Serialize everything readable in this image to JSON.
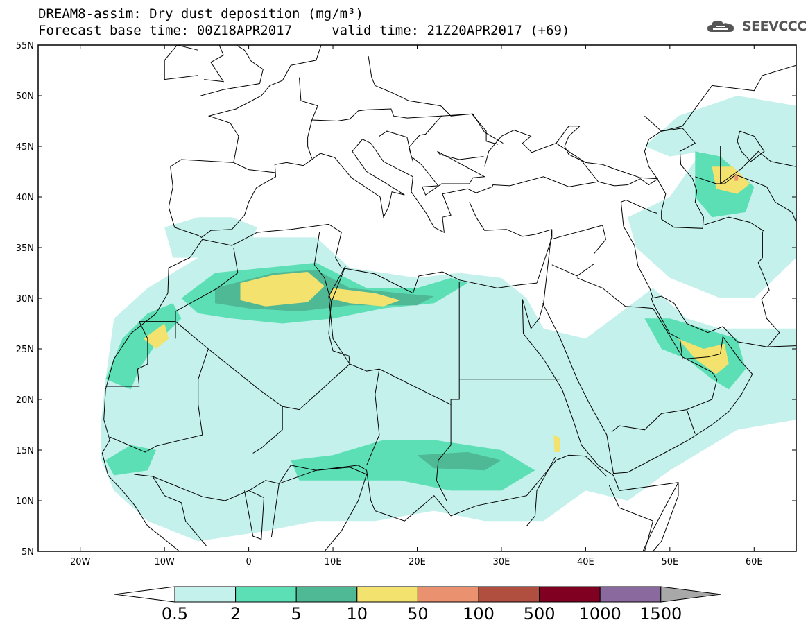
{
  "title": {
    "line1": "DREAM8-assim: Dry dust deposition (mg/m³)",
    "line2": "Forecast base time: 00Z18APR2017     valid time: 21Z20APR2017 (+69)"
  },
  "logo": {
    "text": "SEEVCCC",
    "icon": "cloud-icon"
  },
  "map": {
    "lon_range": [
      -25,
      65
    ],
    "lat_range": [
      5,
      55
    ],
    "lat_labels": [
      {
        "lat": 55,
        "label": "55N"
      },
      {
        "lat": 50,
        "label": "50N"
      },
      {
        "lat": 45,
        "label": "45N"
      },
      {
        "lat": 40,
        "label": "40N"
      },
      {
        "lat": 35,
        "label": "35N"
      },
      {
        "lat": 30,
        "label": "30N"
      },
      {
        "lat": 25,
        "label": "25N"
      },
      {
        "lat": 20,
        "label": "20N"
      },
      {
        "lat": 15,
        "label": "15N"
      },
      {
        "lat": 10,
        "label": "10N"
      },
      {
        "lat": 5,
        "label": "5N"
      }
    ],
    "lon_labels": [
      {
        "lon": -20,
        "label": "20W"
      },
      {
        "lon": -10,
        "label": "10W"
      },
      {
        "lon": 0,
        "label": "0"
      },
      {
        "lon": 10,
        "label": "10E"
      },
      {
        "lon": 20,
        "label": "20E"
      },
      {
        "lon": 30,
        "label": "30E"
      },
      {
        "lon": 40,
        "label": "40E"
      },
      {
        "lon": 50,
        "label": "50E"
      },
      {
        "lon": 60,
        "label": "60E"
      }
    ]
  },
  "colorbar": {
    "colors": [
      "#c4f1ec",
      "#5ddfb6",
      "#4fb995",
      "#f3e26d",
      "#ea9170",
      "#b04f40",
      "#800021",
      "#8a6a9e"
    ],
    "extend_low_color": "#ffffff",
    "extend_high_color": "#a8a8a8",
    "labels": [
      "0.5",
      "2",
      "5",
      "10",
      "50",
      "100",
      "500",
      "1000",
      "1500"
    ]
  },
  "colors": {
    "land_outline": "#000000",
    "background": "#ffffff"
  },
  "dust_regions": [
    {
      "level": 1,
      "name": "sahara-belt",
      "pts": [
        [
          -17,
          22
        ],
        [
          -16,
          28
        ],
        [
          -12,
          31
        ],
        [
          -6,
          34
        ],
        [
          0,
          36
        ],
        [
          8,
          36
        ],
        [
          12,
          33
        ],
        [
          20,
          32
        ],
        [
          25,
          32.5
        ],
        [
          30,
          32
        ],
        [
          33,
          30
        ],
        [
          35,
          27
        ],
        [
          40,
          26
        ],
        [
          48,
          31
        ],
        [
          52,
          28
        ],
        [
          56,
          27
        ],
        [
          60,
          27
        ],
        [
          65,
          27
        ],
        [
          65,
          18
        ],
        [
          58,
          17
        ],
        [
          50,
          13
        ],
        [
          45,
          10
        ],
        [
          40,
          11
        ],
        [
          35,
          8
        ],
        [
          28,
          8
        ],
        [
          22,
          9
        ],
        [
          15,
          8
        ],
        [
          8,
          8
        ],
        [
          2,
          7
        ],
        [
          -6,
          6
        ],
        [
          -12,
          8
        ],
        [
          -16,
          11
        ],
        [
          -17.5,
          14
        ],
        [
          -17.5,
          18
        ]
      ]
    },
    {
      "level": 1,
      "name": "western-sahel",
      "pts": [
        [
          -17,
          13
        ],
        [
          -10,
          14
        ],
        [
          -5,
          15
        ],
        [
          2,
          15
        ],
        [
          10,
          16
        ],
        [
          15,
          17
        ],
        [
          22,
          16
        ],
        [
          28,
          17
        ],
        [
          33,
          17
        ],
        [
          37,
          14
        ],
        [
          36,
          10
        ],
        [
          30,
          8
        ],
        [
          22,
          9
        ],
        [
          14,
          10
        ],
        [
          6,
          10
        ],
        [
          0,
          10
        ],
        [
          -8,
          9
        ],
        [
          -14,
          11
        ]
      ]
    },
    {
      "level": 1,
      "name": "iran-central-asia",
      "pts": [
        [
          45,
          38
        ],
        [
          50,
          40
        ],
        [
          55,
          46
        ],
        [
          60,
          47
        ],
        [
          65,
          46
        ],
        [
          65,
          34
        ],
        [
          60,
          30
        ],
        [
          56,
          30
        ],
        [
          50,
          32
        ],
        [
          46,
          35
        ]
      ]
    },
    {
      "level": 1,
      "name": "caspian-north",
      "pts": [
        [
          47,
          45
        ],
        [
          51,
          48
        ],
        [
          58,
          50
        ],
        [
          65,
          49
        ],
        [
          65,
          46
        ],
        [
          58,
          45
        ],
        [
          50,
          44
        ]
      ]
    },
    {
      "level": 1,
      "name": "iberia-morocco",
      "pts": [
        [
          -10,
          37
        ],
        [
          -6,
          38
        ],
        [
          -2,
          38
        ],
        [
          1,
          37
        ],
        [
          0,
          35
        ],
        [
          -5,
          34
        ],
        [
          -9,
          34
        ]
      ]
    },
    {
      "level": 2,
      "name": "algeria-libya-core",
      "pts": [
        [
          -8,
          30
        ],
        [
          -4,
          32.5
        ],
        [
          2,
          33
        ],
        [
          8,
          33.5
        ],
        [
          14,
          31
        ],
        [
          20,
          31
        ],
        [
          24,
          32
        ],
        [
          26,
          31.5
        ],
        [
          22,
          29.5
        ],
        [
          16,
          29
        ],
        [
          10,
          28
        ],
        [
          4,
          27.5
        ],
        [
          -2,
          28
        ],
        [
          -6,
          28.5
        ]
      ]
    },
    {
      "level": 2,
      "name": "west-sahara-coast",
      "pts": [
        [
          -17,
          22
        ],
        [
          -15,
          26
        ],
        [
          -12,
          28.5
        ],
        [
          -9,
          29.5
        ],
        [
          -8,
          28
        ],
        [
          -11,
          25.5
        ],
        [
          -13,
          23
        ],
        [
          -14,
          21
        ]
      ]
    },
    {
      "level": 2,
      "name": "sahel-east",
      "pts": [
        [
          5,
          14
        ],
        [
          10,
          14.5
        ],
        [
          16,
          16
        ],
        [
          22,
          16
        ],
        [
          30,
          15
        ],
        [
          34,
          13
        ],
        [
          30,
          11
        ],
        [
          24,
          11
        ],
        [
          18,
          12
        ],
        [
          12,
          12
        ],
        [
          6,
          12
        ]
      ]
    },
    {
      "level": 2,
      "name": "aral-caspian",
      "pts": [
        [
          53,
          44.5
        ],
        [
          56,
          44
        ],
        [
          60,
          41
        ],
        [
          59,
          38.5
        ],
        [
          55,
          38
        ],
        [
          53,
          40
        ]
      ]
    },
    {
      "level": 2,
      "name": "persian-gulf",
      "pts": [
        [
          47,
          28
        ],
        [
          50,
          28
        ],
        [
          54,
          27
        ],
        [
          58,
          26
        ],
        [
          59,
          23
        ],
        [
          57,
          21
        ],
        [
          55,
          22
        ],
        [
          52,
          24
        ],
        [
          49,
          25
        ]
      ]
    },
    {
      "level": 2,
      "name": "senegal",
      "pts": [
        [
          -17,
          14
        ],
        [
          -14,
          15.5
        ],
        [
          -11,
          15
        ],
        [
          -12,
          13
        ],
        [
          -16,
          12.5
        ]
      ]
    },
    {
      "level": 3,
      "name": "algeria-dark",
      "pts": [
        [
          -4,
          31
        ],
        [
          3,
          32.5
        ],
        [
          8,
          32.8
        ],
        [
          12,
          31
        ],
        [
          18,
          30.5
        ],
        [
          22,
          30.2
        ],
        [
          20,
          29.3
        ],
        [
          12,
          29.3
        ],
        [
          6,
          28.7
        ],
        [
          0,
          29
        ],
        [
          -4,
          29.5
        ]
      ]
    },
    {
      "level": 3,
      "name": "sudan-dark",
      "pts": [
        [
          20,
          14.5
        ],
        [
          26,
          14.8
        ],
        [
          30,
          14
        ],
        [
          28,
          13
        ],
        [
          22,
          13.2
        ]
      ]
    },
    {
      "level": 4,
      "name": "algeria-yellow",
      "pts": [
        [
          -1,
          31.5
        ],
        [
          3,
          32.3
        ],
        [
          7,
          32.6
        ],
        [
          9,
          31.2
        ],
        [
          7,
          29.6
        ],
        [
          2,
          29.2
        ],
        [
          -1,
          29.8
        ]
      ]
    },
    {
      "level": 4,
      "name": "libya-yellow",
      "pts": [
        [
          10,
          31
        ],
        [
          15,
          30.5
        ],
        [
          18,
          29.8
        ],
        [
          16,
          29.2
        ],
        [
          12,
          29.5
        ],
        [
          9.5,
          30
        ]
      ]
    },
    {
      "level": 4,
      "name": "west-sahara-yellow",
      "pts": [
        [
          -12.5,
          26
        ],
        [
          -10,
          27.5
        ],
        [
          -9.5,
          26
        ],
        [
          -11,
          25
        ]
      ]
    },
    {
      "level": 4,
      "name": "aral-yellow",
      "pts": [
        [
          55,
          43
        ],
        [
          57.5,
          43
        ],
        [
          59.5,
          41.3
        ],
        [
          58,
          40.3
        ],
        [
          55.5,
          40.8
        ]
      ]
    },
    {
      "level": 4,
      "name": "gulf-yellow",
      "pts": [
        [
          51,
          26
        ],
        [
          54,
          25
        ],
        [
          56.5,
          25.5
        ],
        [
          57,
          23.5
        ],
        [
          55.5,
          22.5
        ],
        [
          53,
          24
        ]
      ]
    },
    {
      "level": 4,
      "name": "ethiopia-yellow",
      "pts": [
        [
          36.2,
          16.5
        ],
        [
          37,
          16.2
        ],
        [
          37,
          14.8
        ],
        [
          36.3,
          14.8
        ]
      ]
    },
    {
      "level": 5,
      "name": "aral-red-spot",
      "pts": [
        [
          57.7,
          42.1
        ],
        [
          58.1,
          42.1
        ],
        [
          58.1,
          41.6
        ],
        [
          57.7,
          41.6
        ]
      ]
    }
  ]
}
